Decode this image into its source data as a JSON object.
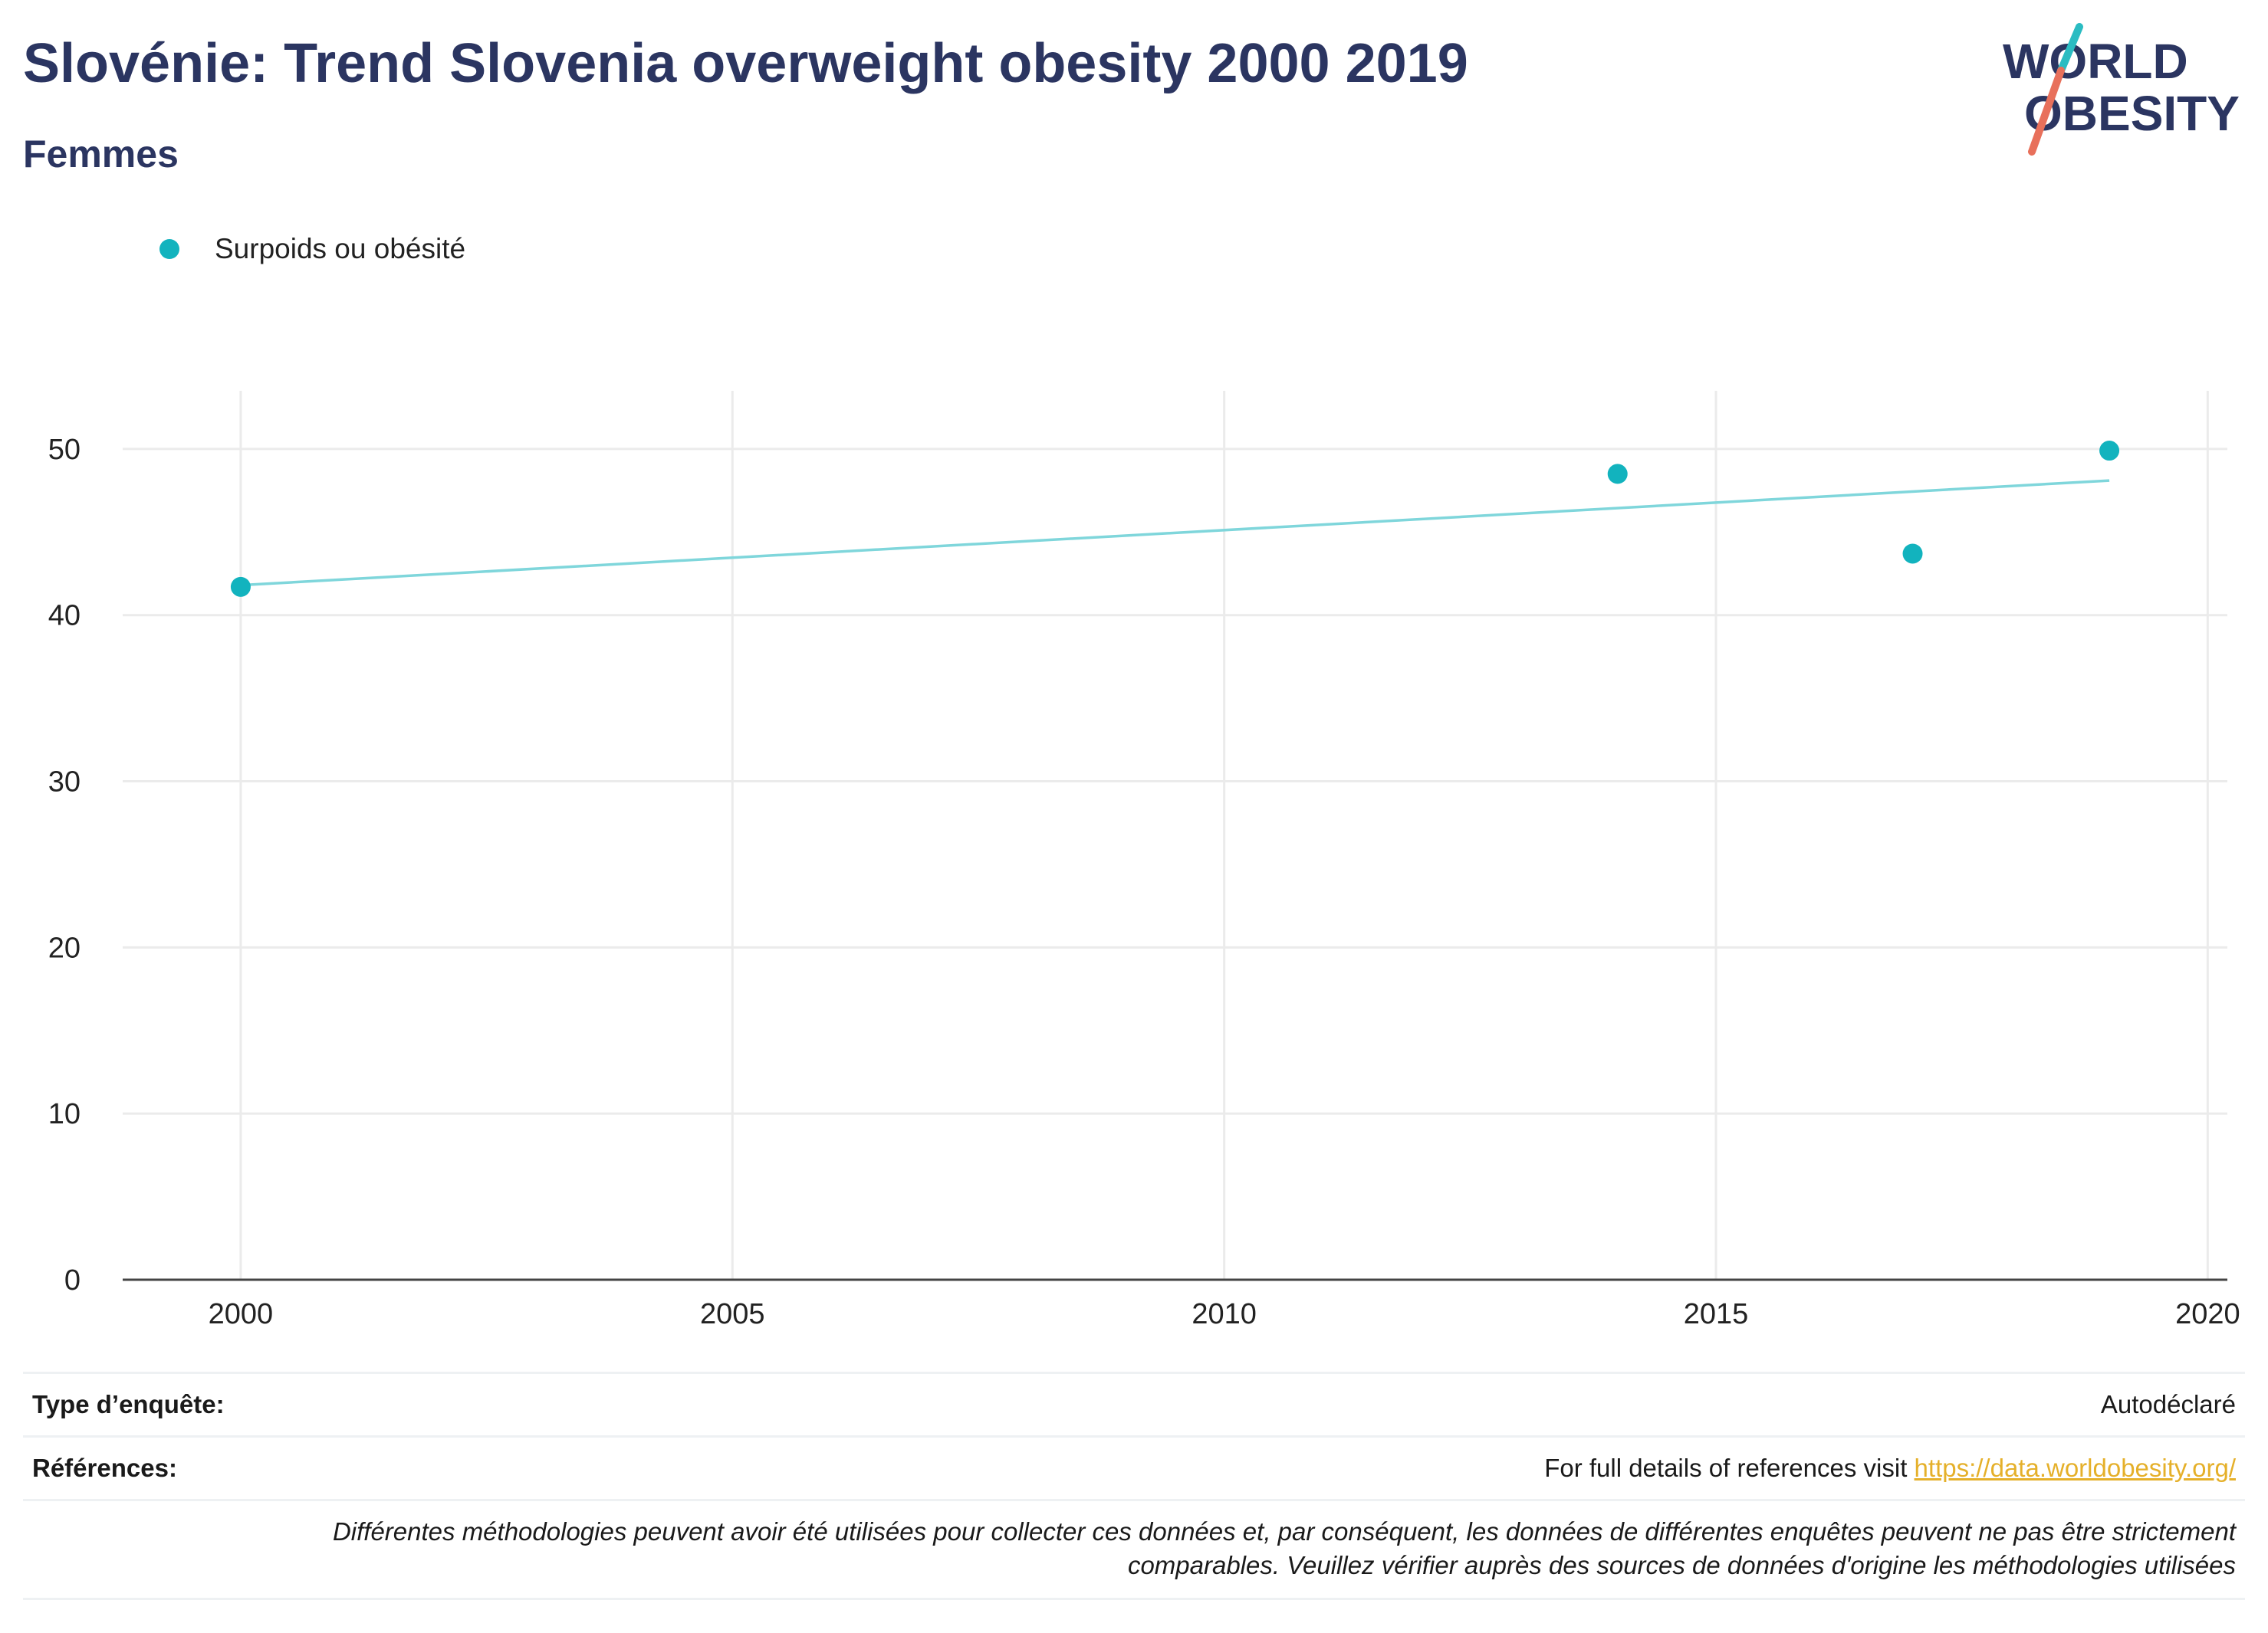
{
  "header": {
    "title": "Slovénie: Trend Slovenia overweight obesity 2000 2019",
    "subtitle": "Femmes",
    "logo": {
      "line1": "WORLD",
      "line2": "OBESITY"
    }
  },
  "legend": {
    "label": "Surpoids ou obésité"
  },
  "colors": {
    "title": "#2b3561",
    "marker": "#12b3be",
    "trendline": "#7fd6db",
    "grid": "#ebebeb",
    "axis": "#444444",
    "logo_teal": "#2bbcc2",
    "logo_coral": "#e8705b",
    "link": "#e5b02a"
  },
  "chart_data": {
    "type": "scatter",
    "x": [
      2000,
      2014,
      2017,
      2019
    ],
    "series": [
      {
        "name": "Surpoids ou obésité",
        "values": [
          41.7,
          48.5,
          43.7,
          49.9
        ]
      }
    ],
    "trendline": {
      "x": [
        2000,
        2019
      ],
      "y": [
        41.8,
        48.1
      ]
    },
    "xlim": [
      1998.8,
      2020.2
    ],
    "ylim": [
      0,
      53.5
    ],
    "xticks": [
      2000,
      2005,
      2010,
      2015,
      2020
    ],
    "yticks": [
      0,
      10,
      20,
      30,
      40,
      50
    ],
    "grid": true,
    "legend_position": "top-left",
    "xlabel": "",
    "ylabel": ""
  },
  "footer": {
    "survey_type_label": "Type d’enquête:",
    "survey_type_value": "Autodéclaré",
    "references_label": "Références:",
    "references_text": "For full details of references visit",
    "references_link": "https://data.worldobesity.org/",
    "disclaimer_line1": "Différentes méthodologies peuvent avoir été utilisées pour collecter ces données et, par conséquent, les données de différentes enquêtes peuvent ne pas être strictement",
    "disclaimer_line2": "comparables. Veuillez vérifier auprès des sources de données d'origine les méthodologies utilisées"
  }
}
